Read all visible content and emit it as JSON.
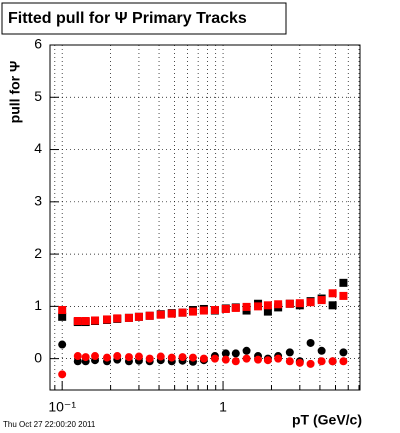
{
  "chart_data": {
    "type": "scatter",
    "title": "Fitted pull for  Ψ   Primary Tracks",
    "y_label": "pull for Ψ",
    "x_label": "pT (GeV/c)",
    "footer": "Thu Oct 27 22:00:20 2011",
    "x": [
      0.1,
      0.125,
      0.14,
      0.16,
      0.19,
      0.22,
      0.26,
      0.3,
      0.35,
      0.41,
      0.48,
      0.56,
      0.65,
      0.76,
      0.89,
      1.04,
      1.2,
      1.4,
      1.65,
      1.9,
      2.2,
      2.6,
      3.0,
      3.5,
      4.1,
      4.8,
      5.6
    ],
    "series": [
      {
        "color": "#000000",
        "marker": "square",
        "values": [
          0.8,
          0.7,
          0.7,
          0.72,
          0.74,
          0.76,
          0.78,
          0.8,
          0.82,
          0.85,
          0.87,
          0.88,
          0.93,
          0.95,
          0.92,
          0.96,
          0.98,
          0.92,
          1.05,
          0.9,
          0.98,
          1.05,
          1.02,
          1.1,
          1.15,
          1.02,
          1.45
        ]
      },
      {
        "color": "#000000",
        "marker": "circle",
        "values": [
          0.27,
          -0.05,
          -0.05,
          -0.03,
          -0.05,
          -0.02,
          -0.05,
          -0.04,
          -0.05,
          -0.03,
          -0.05,
          -0.04,
          -0.06,
          -0.03,
          0.05,
          0.1,
          0.1,
          0.15,
          0.05,
          0.0,
          0.05,
          0.12,
          -0.05,
          0.3,
          0.15,
          -0.05,
          0.12
        ]
      },
      {
        "color": "#ff0000",
        "marker": "square",
        "values": [
          0.93,
          0.72,
          0.72,
          0.73,
          0.75,
          0.77,
          0.78,
          0.8,
          0.82,
          0.84,
          0.86,
          0.88,
          0.9,
          0.92,
          0.93,
          0.95,
          0.97,
          0.99,
          1.0,
          1.02,
          1.04,
          1.05,
          1.06,
          1.08,
          1.12,
          1.25,
          1.2
        ]
      },
      {
        "color": "#ff0000",
        "marker": "circle",
        "values": [
          -0.3,
          0.05,
          0.03,
          0.05,
          0.02,
          0.05,
          0.03,
          0.04,
          0.0,
          0.04,
          0.02,
          0.03,
          0.02,
          0.0,
          0.0,
          -0.02,
          -0.05,
          0.0,
          -0.02,
          -0.03,
          0.0,
          -0.05,
          -0.08,
          -0.1,
          -0.05,
          -0.05,
          -0.05
        ]
      }
    ],
    "xlog": true,
    "xlim": [
      0.084,
      7.1
    ],
    "ylim": [
      -0.6,
      6
    ],
    "xticks": [
      {
        "value": 0.1,
        "label": "10⁻¹"
      },
      1
    ],
    "xminorticks": [
      0.09,
      0.2,
      0.3,
      0.4,
      0.5,
      0.6,
      0.7,
      0.8,
      0.9,
      2,
      3,
      4,
      5,
      6,
      7
    ],
    "yticks": [
      0,
      1,
      2,
      3,
      4,
      5,
      6
    ],
    "grid": true
  }
}
